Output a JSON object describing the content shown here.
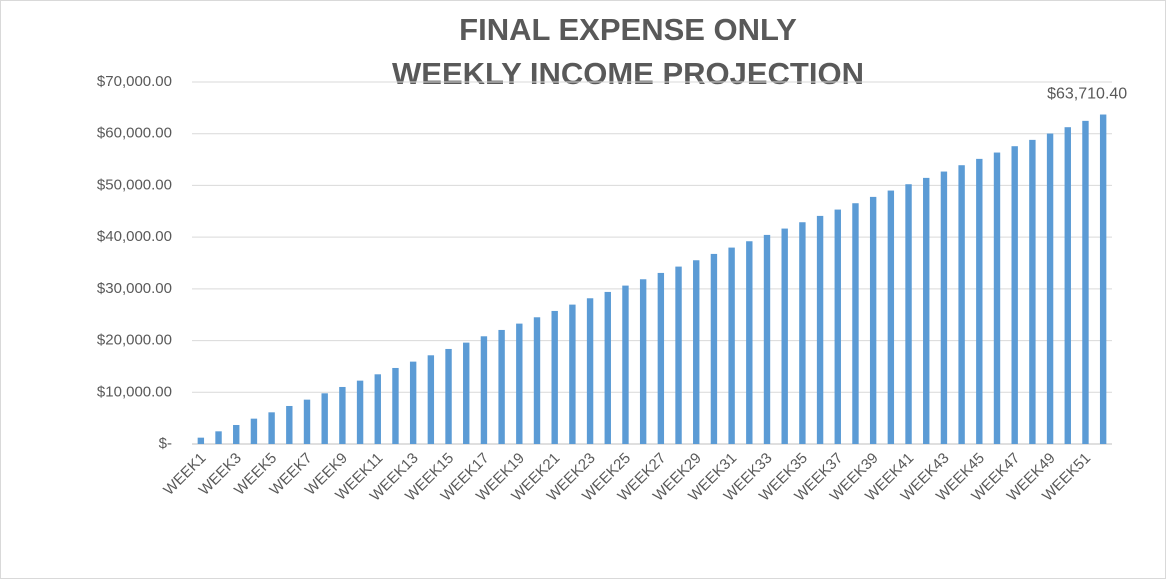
{
  "chart_data": {
    "type": "bar",
    "title": [
      "FINAL EXPENSE ONLY",
      "WEEKLY INCOME PROJECTION"
    ],
    "categories": [
      "WEEK1",
      null,
      "WEEK3",
      null,
      "WEEK5",
      null,
      "WEEK7",
      null,
      "WEEK9",
      null,
      "WEEK11",
      null,
      "WEEK13",
      null,
      "WEEK15",
      null,
      "WEEK17",
      null,
      "WEEK19",
      null,
      "WEEK21",
      null,
      "WEEK23",
      null,
      "WEEK25",
      null,
      "WEEK27",
      null,
      "WEEK29",
      null,
      "WEEK31",
      null,
      "WEEK33",
      null,
      "WEEK35",
      null,
      "WEEK37",
      null,
      "WEEK39",
      null,
      "WEEK41",
      null,
      "WEEK43",
      null,
      "WEEK45",
      null,
      "WEEK47",
      null,
      "WEEK49",
      null,
      "WEEK51",
      null
    ],
    "values": [
      1225.2,
      2450.4,
      3675.6,
      4900.8,
      6126,
      7351.2,
      8576.4,
      9801.6,
      11026.8,
      12252,
      13477.2,
      14702.4,
      15927.6,
      17152.8,
      18378,
      19603.2,
      20828.4,
      22053.6,
      23278.8,
      24504,
      25729.2,
      26954.4,
      28179.6,
      29404.8,
      30630,
      31855.2,
      33080.4,
      34305.6,
      35530.8,
      36756,
      37981.2,
      39206.4,
      40431.6,
      41656.8,
      42882,
      44107.2,
      45332.4,
      46557.6,
      47782.8,
      49008,
      50233.2,
      51458.4,
      52683.6,
      53908.8,
      55134,
      56359.2,
      57584.4,
      58809.6,
      60034.8,
      61260,
      62485.2,
      63710.4
    ],
    "value_labels": [
      null,
      null,
      null,
      null,
      null,
      null,
      null,
      null,
      null,
      null,
      null,
      null,
      null,
      null,
      null,
      null,
      null,
      null,
      null,
      null,
      null,
      null,
      null,
      null,
      null,
      null,
      null,
      null,
      null,
      null,
      null,
      null,
      null,
      null,
      null,
      null,
      null,
      null,
      null,
      null,
      null,
      null,
      null,
      null,
      null,
      null,
      null,
      null,
      null,
      null,
      null,
      "$63,710.40"
    ],
    "color": "#5b9bd5",
    "ylim": [
      0,
      70000
    ],
    "yticks": [
      {
        "value": 0,
        "label": "$-"
      },
      {
        "value": 10000,
        "label": "$10,000.00"
      },
      {
        "value": 20000,
        "label": "$20,000.00"
      },
      {
        "value": 30000,
        "label": "$30,000.00"
      },
      {
        "value": 40000,
        "label": "$40,000.00"
      },
      {
        "value": 50000,
        "label": "$50,000.00"
      },
      {
        "value": 60000,
        "label": "$60,000.00"
      },
      {
        "value": 70000,
        "label": "$70,000.00"
      }
    ],
    "grid": true
  }
}
